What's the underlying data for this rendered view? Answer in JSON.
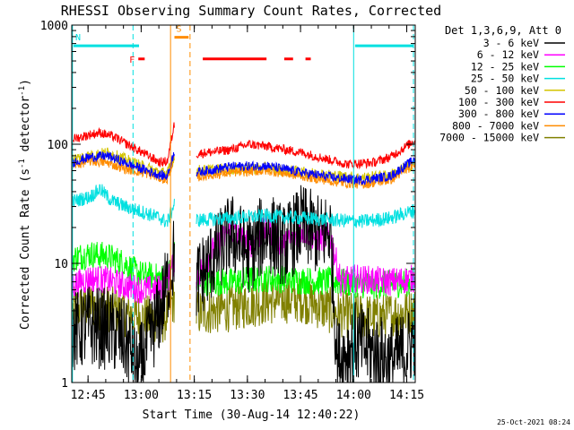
{
  "chart_data": {
    "type": "line",
    "title": "RHESSI Observing Summary Count Rates, Corrected",
    "xlabel": "Start Time (30-Aug-14 12:40:22)",
    "ylabel": "Corrected Count Rate (s",
    "ylabel_sup1": "-1",
    "ylabel_mid": " detector",
    "ylabel_sup2": "-1",
    "ylabel_end": ")",
    "yscale": "log",
    "ylim": [
      1,
      1000
    ],
    "xlim_minutes": [
      0,
      97
    ],
    "x_ticks": [
      {
        "label": "12:45",
        "min": 4.6
      },
      {
        "label": "13:00",
        "min": 19.6
      },
      {
        "label": "13:15",
        "min": 34.6
      },
      {
        "label": "13:30",
        "min": 49.6
      },
      {
        "label": "13:45",
        "min": 64.6
      },
      {
        "label": "14:00",
        "min": 79.6
      },
      {
        "label": "14:15",
        "min": 94.6
      }
    ],
    "y_ticks": [
      {
        "label": "1",
        "value": 1
      },
      {
        "label": "10",
        "value": 10
      },
      {
        "label": "100",
        "value": 100
      },
      {
        "label": "1000",
        "value": 1000
      }
    ],
    "legend_title": "Det 1,3,6,9, Att 0",
    "legend_position": "right",
    "timestamp": "25-Oct-2021 08:24",
    "flags": [
      {
        "label": "N",
        "color": "#00e0e0",
        "start": 0.5,
        "end": 19.0,
        "level": 670
      },
      {
        "label": "",
        "color": "#00e0e0",
        "start": 80.0,
        "end": 96.5,
        "level": 670
      },
      {
        "label": "S",
        "color": "#ff8c00",
        "start": 29.0,
        "end": 33.0,
        "level": 790
      },
      {
        "label": "F",
        "color": "#ff0000",
        "start": 18.8,
        "end": 20.6,
        "level": 520
      },
      {
        "label": "",
        "color": "#ff0000",
        "start": 37.0,
        "end": 55.0,
        "level": 520
      },
      {
        "label": "",
        "color": "#ff0000",
        "start": 60.0,
        "end": 62.5,
        "level": 520
      },
      {
        "label": "",
        "color": "#ff0000",
        "start": 66.0,
        "end": 67.5,
        "level": 520
      }
    ],
    "vlines": [
      {
        "min": 0.2,
        "color": "#00e0e0",
        "style": "solid"
      },
      {
        "min": 17.3,
        "color": "#00e0e0",
        "style": "dashed"
      },
      {
        "min": 79.6,
        "color": "#00e0e0",
        "style": "solid"
      },
      {
        "min": 96.5,
        "color": "#00e0e0",
        "style": "dashed"
      },
      {
        "min": 27.9,
        "color": "#ff8c00",
        "style": "solid"
      },
      {
        "min": 33.4,
        "color": "#ff8c00",
        "style": "dashed"
      }
    ],
    "segments": [
      [
        0.3,
        29.0
      ],
      [
        35.2,
        96.9
      ]
    ],
    "series": [
      {
        "name": "3 - 6 keV",
        "color": "#000000",
        "anchors": [
          [
            0,
            2.6
          ],
          [
            5,
            3.0
          ],
          [
            10,
            2.8
          ],
          [
            14,
            2.4
          ],
          [
            17,
            1.8
          ],
          [
            18.5,
            1.2
          ],
          [
            25,
            4
          ],
          [
            28,
            9
          ],
          [
            29,
            12
          ],
          [
            35.2,
            7
          ],
          [
            40,
            11
          ],
          [
            45,
            18
          ],
          [
            50,
            12
          ],
          [
            55,
            19
          ],
          [
            60,
            14
          ],
          [
            65,
            21
          ],
          [
            70,
            17
          ],
          [
            73,
            19
          ],
          [
            75,
            1.5
          ],
          [
            80,
            2.2
          ],
          [
            85,
            1.8
          ],
          [
            90,
            1.5
          ],
          [
            95,
            1.9
          ],
          [
            96.9,
            2.5
          ]
        ],
        "noise": 0.35
      },
      {
        "name": "6 - 12 keV",
        "color": "#ff00ff",
        "anchors": [
          [
            0,
            6.5
          ],
          [
            5,
            7.5
          ],
          [
            10,
            7.2
          ],
          [
            15,
            6.5
          ],
          [
            20,
            6.0
          ],
          [
            26,
            6.2
          ],
          [
            28,
            8.5
          ],
          [
            29,
            11
          ],
          [
            35.2,
            7.5
          ],
          [
            40,
            13
          ],
          [
            45,
            19
          ],
          [
            50,
            14
          ],
          [
            55,
            20
          ],
          [
            60,
            14
          ],
          [
            65,
            19
          ],
          [
            70,
            16
          ],
          [
            73,
            17
          ],
          [
            76,
            7
          ],
          [
            80,
            7.5
          ],
          [
            90,
            7.0
          ],
          [
            96.9,
            7.5
          ]
        ],
        "noise": 0.12
      },
      {
        "name": "12 - 25 keV",
        "color": "#00ff00",
        "anchors": [
          [
            0,
            11
          ],
          [
            5,
            12
          ],
          [
            10,
            11.5
          ],
          [
            15,
            10
          ],
          [
            18,
            8.5
          ],
          [
            20,
            8.0
          ],
          [
            26,
            7.5
          ],
          [
            28,
            9
          ],
          [
            29,
            12
          ],
          [
            35.2,
            7
          ],
          [
            45,
            7
          ],
          [
            55,
            7.5
          ],
          [
            65,
            7.2
          ],
          [
            75,
            7
          ],
          [
            85,
            6.5
          ],
          [
            96.9,
            7
          ]
        ],
        "noise": 0.12
      },
      {
        "name": "25 - 50 keV",
        "color": "#00e0e0",
        "anchors": [
          [
            0,
            33
          ],
          [
            5,
            36
          ],
          [
            8,
            42
          ],
          [
            11,
            34
          ],
          [
            15,
            30
          ],
          [
            20,
            27
          ],
          [
            25,
            24
          ],
          [
            27,
            22
          ],
          [
            29,
            32
          ],
          [
            35.2,
            23
          ],
          [
            45,
            24
          ],
          [
            55,
            25
          ],
          [
            65,
            24
          ],
          [
            75,
            23
          ],
          [
            82,
            22.5
          ],
          [
            90,
            24
          ],
          [
            96.9,
            28
          ]
        ],
        "noise": 0.06
      },
      {
        "name": "50 - 100 keV",
        "color": "#d4c400",
        "anchors": [
          [
            0,
            75
          ],
          [
            5,
            80
          ],
          [
            10,
            85
          ],
          [
            15,
            75
          ],
          [
            20,
            65
          ],
          [
            25,
            58
          ],
          [
            27,
            57
          ],
          [
            29,
            78
          ],
          [
            35.2,
            60
          ],
          [
            45,
            62
          ],
          [
            55,
            63
          ],
          [
            65,
            58
          ],
          [
            75,
            54
          ],
          [
            82,
            52
          ],
          [
            90,
            55
          ],
          [
            96.9,
            70
          ]
        ],
        "noise": 0.05
      },
      {
        "name": "100 - 300 keV",
        "color": "#ff0000",
        "anchors": [
          [
            0,
            110
          ],
          [
            5,
            120
          ],
          [
            8,
            125
          ],
          [
            12,
            115
          ],
          [
            17,
            95
          ],
          [
            20,
            85
          ],
          [
            25,
            70
          ],
          [
            27,
            72
          ],
          [
            29,
            150
          ],
          [
            35.2,
            83
          ],
          [
            45,
            90
          ],
          [
            50,
            100
          ],
          [
            55,
            96
          ],
          [
            65,
            85
          ],
          [
            72,
            75
          ],
          [
            78,
            68
          ],
          [
            85,
            70
          ],
          [
            90,
            78
          ],
          [
            96.9,
            108
          ]
        ],
        "noise": 0.04
      },
      {
        "name": "300 - 800 keV",
        "color": "#0000ff",
        "anchors": [
          [
            0,
            70
          ],
          [
            5,
            78
          ],
          [
            10,
            80
          ],
          [
            15,
            70
          ],
          [
            20,
            62
          ],
          [
            25,
            55
          ],
          [
            27,
            54
          ],
          [
            29,
            88
          ],
          [
            35.2,
            58
          ],
          [
            45,
            65
          ],
          [
            55,
            66
          ],
          [
            65,
            58
          ],
          [
            75,
            52
          ],
          [
            82,
            50
          ],
          [
            90,
            54
          ],
          [
            96.9,
            75
          ]
        ],
        "noise": 0.04
      },
      {
        "name": "800 - 7000 keV",
        "color": "#ff8c00",
        "anchors": [
          [
            0,
            66
          ],
          [
            5,
            72
          ],
          [
            10,
            70
          ],
          [
            15,
            62
          ],
          [
            20,
            58
          ],
          [
            25,
            52
          ],
          [
            27,
            50
          ],
          [
            29,
            80
          ],
          [
            35.2,
            53
          ],
          [
            45,
            58
          ],
          [
            55,
            60
          ],
          [
            65,
            54
          ],
          [
            75,
            48
          ],
          [
            82,
            46
          ],
          [
            90,
            50
          ],
          [
            96.9,
            68
          ]
        ],
        "noise": 0.04
      },
      {
        "name": "7000 - 15000 keV",
        "color": "#808000",
        "anchors": [
          [
            0,
            4.0
          ],
          [
            5,
            4.5
          ],
          [
            10,
            4.2
          ],
          [
            15,
            3.8
          ],
          [
            20,
            3.5
          ],
          [
            26,
            3.3
          ],
          [
            28,
            4.5
          ],
          [
            29,
            5
          ],
          [
            35.2,
            3.8
          ],
          [
            45,
            4.2
          ],
          [
            55,
            4.8
          ],
          [
            65,
            5.0
          ],
          [
            75,
            3.8
          ],
          [
            85,
            3.5
          ],
          [
            96.9,
            4.0
          ]
        ],
        "noise": 0.2
      }
    ]
  }
}
